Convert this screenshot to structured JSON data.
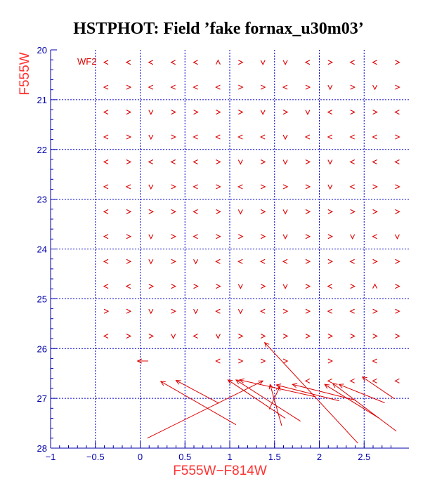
{
  "colors": {
    "axis": "#0000aa",
    "grid": "#0000cc",
    "marks": "#dd0000",
    "axis_title": "#ff3333",
    "title": "#000000",
    "background": "#ffffff"
  },
  "chart_data": {
    "type": "scatter",
    "title": "HSTPHOT: Field ’fake fornax_u30m03’",
    "xlabel": "F555W−F814W",
    "ylabel": "F555W",
    "field_label": "WF2",
    "xlim": [
      -1,
      3
    ],
    "ylim": [
      28,
      20
    ],
    "y_inverted": true,
    "grid": true,
    "x_ticks": [
      -1,
      -0.5,
      0,
      0.5,
      1,
      1.5,
      2,
      2.5
    ],
    "x_tick_labels": [
      "−1",
      "−0.5",
      "0",
      "0.5",
      "1",
      "1.5",
      "2",
      "2.5"
    ],
    "y_ticks": [
      20,
      21,
      22,
      23,
      24,
      25,
      26,
      27,
      28
    ],
    "y_tick_labels": [
      "20",
      "21",
      "22",
      "23",
      "24",
      "25",
      "26",
      "27",
      "28"
    ],
    "x_gridlines": [
      -0.5,
      0,
      0.5,
      1,
      1.5,
      2,
      2.5
    ],
    "y_gridlines": [
      21,
      22,
      23,
      24,
      25,
      26,
      27
    ],
    "mark_description": "Each fake star is drawn as a small chevron (<, >, v, ^) pointing from its recovered position toward its input position; the lower rows show long arrows with arrowheads at the input position.",
    "input_grid": {
      "x": [
        -0.38,
        -0.13,
        0.12,
        0.37,
        0.62,
        0.87,
        1.12,
        1.37,
        1.62,
        1.87,
        2.12,
        2.37,
        2.62,
        2.87
      ],
      "y": [
        20.25,
        20.75,
        21.25,
        21.75,
        22.25,
        22.75,
        23.25,
        23.75,
        24.25,
        24.75,
        25.25,
        25.75,
        26.25,
        26.65
      ]
    },
    "glyph_rows": [
      "<<<<<^>vv<><<>",
      "<><<<<>><>v>v>",
      "<>v>>>>v>v<>><",
      "<>v><<<<v<<<<>",
      "<><<<>v>v>v<<<",
      "<<v><><>>>v<>>",
      "<>>><>v>v>>>>>",
      "<>v><>>>v>>v<v",
      "<>v>v<<<<>><>>",
      "<<>>>>v>v><>^>",
      ">>v>v<v<>><<>>",
      "<>>v<v>>>>>>>>",
      "     <>>> > < <",
      "         <<<<<"
    ],
    "long_arrows": [
      {
        "x_in": 0.23,
        "y_in": 26.66,
        "x_out": 1.07,
        "y_out": 27.53
      },
      {
        "x_in": 0.4,
        "y_in": 26.64,
        "x_out": 0.88,
        "y_out": 27.1
      },
      {
        "x_in": 0.98,
        "y_in": 26.63,
        "x_out": 1.62,
        "y_out": 27.4
      },
      {
        "x_in": 1.07,
        "y_in": 26.63,
        "x_out": 1.79,
        "y_out": 27.46
      },
      {
        "x_in": 1.11,
        "y_in": 26.63,
        "x_out": 1.96,
        "y_out": 26.97
      },
      {
        "x_in": 1.37,
        "y_in": 26.65,
        "x_out": 0.08,
        "y_out": 27.8
      },
      {
        "x_in": 1.45,
        "y_in": 26.72,
        "x_out": 1.58,
        "y_out": 27.55
      },
      {
        "x_in": 1.52,
        "y_in": 26.73,
        "x_out": 2.22,
        "y_out": 27.05
      },
      {
        "x_in": 1.56,
        "y_in": 26.76,
        "x_out": 1.44,
        "y_out": 27.22
      },
      {
        "x_in": 1.7,
        "y_in": 26.72,
        "x_out": 2.41,
        "y_out": 27.04
      },
      {
        "x_in": 1.39,
        "y_in": 25.88,
        "x_out": 2.43,
        "y_out": 27.9
      },
      {
        "x_in": 2.06,
        "y_in": 26.72,
        "x_out": 2.66,
        "y_out": 27.39
      },
      {
        "x_in": 2.15,
        "y_in": 26.7,
        "x_out": 2.86,
        "y_out": 27.66
      },
      {
        "x_in": 2.22,
        "y_in": 26.72,
        "x_out": 2.73,
        "y_out": 27.09
      },
      {
        "x_in": 2.48,
        "y_in": 26.57,
        "x_out": 2.84,
        "y_out": 27.01
      },
      {
        "x_in": -0.03,
        "y_in": 26.25,
        "x_out": 0.09,
        "y_out": 26.25
      }
    ]
  }
}
